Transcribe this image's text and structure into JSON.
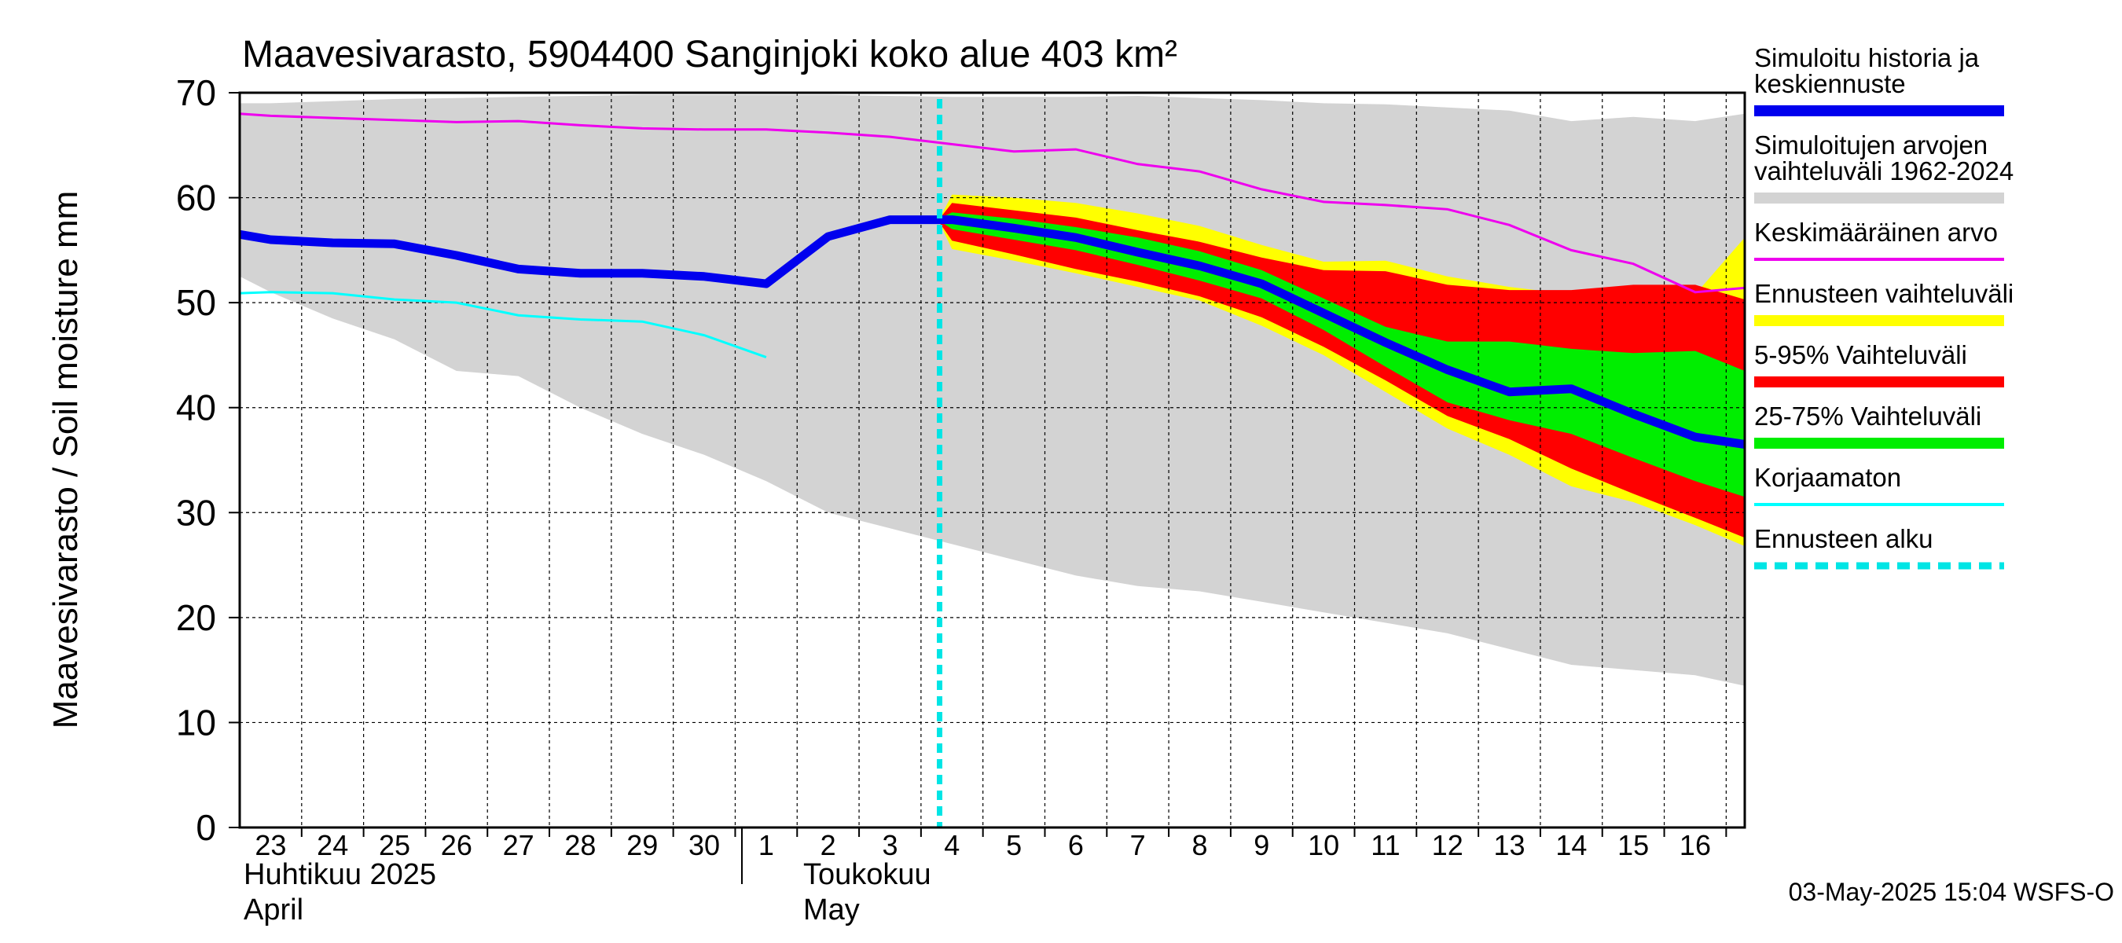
{
  "chart_data": {
    "type": "area",
    "title": "Maavesivarasto, 5904400 Sanginjoki koko alue 403 km²",
    "ylabel": "Maavesivarasto / Soil moisture   mm",
    "ylim": [
      0,
      70
    ],
    "yticks": [
      "0",
      "10",
      "20",
      "30",
      "40",
      "50",
      "60",
      "70"
    ],
    "x_day_range": [
      22.5,
      46.8
    ],
    "x_tick_labels": [
      "23",
      "24",
      "25",
      "26",
      "27",
      "28",
      "29",
      "30",
      "1",
      "2",
      "3",
      "4",
      "5",
      "6",
      "7",
      "8",
      "9",
      "10",
      "11",
      "12",
      "13",
      "14",
      "15",
      "16"
    ],
    "month_labels": {
      "april_fi": "Huhtikuu  2025",
      "april_en": "April",
      "may_fi": "Toukokuu",
      "may_en": "May"
    },
    "grid": true,
    "forecast_start_day": 33.8,
    "legend": [
      {
        "key": "history",
        "label_line1": "Simuloitu historia ja",
        "label_line2": "keskiennuste",
        "color": "#0000ee"
      },
      {
        "key": "range_hist",
        "label_line1": "Simuloitujen arvojen",
        "label_line2": "vaihteluväli 1962-2024",
        "color": "#d3d3d3"
      },
      {
        "key": "mean",
        "label_line1": "Keskimääräinen arvo",
        "color": "#ee00ee"
      },
      {
        "key": "ens_range",
        "label_line1": "Ennusteen vaihteluväli",
        "color": "#ffff00"
      },
      {
        "key": "p5_95",
        "label_line1": "5-95% Vaihteluväli",
        "color": "#ff0000"
      },
      {
        "key": "p25_75",
        "label_line1": "25-75% Vaihteluväli",
        "color": "#00ee00"
      },
      {
        "key": "uncorrected",
        "label_line1": "Korjaamaton",
        "color": "#00ffff"
      },
      {
        "key": "forecast_start",
        "label_line1": "Ennusteen alku",
        "color": "#00e5e5"
      }
    ],
    "series": {
      "range_hist": {
        "x": [
          22.5,
          23,
          24,
          25,
          26,
          27,
          28,
          29,
          30,
          31,
          32,
          33,
          34,
          35,
          36,
          37,
          38,
          39,
          40,
          41,
          42,
          43,
          44,
          45,
          46,
          46.8
        ],
        "upper": [
          69,
          69,
          69.2,
          69.4,
          69.5,
          69.6,
          69.7,
          69.8,
          69.8,
          69.8,
          69.8,
          69.7,
          69.6,
          69.6,
          69.6,
          69.7,
          69.5,
          69.3,
          69,
          68.9,
          68.6,
          68.3,
          67.3,
          67.7,
          67.3,
          68
        ],
        "lower": [
          52.5,
          51,
          48.5,
          46.5,
          43.5,
          43,
          40,
          37.5,
          35.5,
          33,
          30,
          28.5,
          27,
          25.5,
          24,
          23,
          22.5,
          21.5,
          20.5,
          19.5,
          18.5,
          17,
          15.5,
          15,
          14.5,
          13.5
        ]
      },
      "mean": {
        "x": [
          22.5,
          23,
          24,
          25,
          26,
          27,
          28,
          29,
          30,
          31,
          32,
          33,
          34,
          35,
          36,
          37,
          38,
          39,
          40,
          41,
          42,
          43,
          44,
          45,
          46,
          46.8
        ],
        "y": [
          68,
          67.8,
          67.6,
          67.4,
          67.2,
          67.3,
          66.9,
          66.6,
          66.5,
          66.5,
          66.2,
          65.8,
          65.1,
          64.4,
          64.6,
          63.2,
          62.5,
          60.8,
          59.6,
          59.3,
          58.9,
          57.4,
          55,
          53.7,
          51,
          51.4
        ]
      },
      "history": {
        "x": [
          22.5,
          23,
          24,
          25,
          26,
          27,
          28,
          29,
          30,
          31,
          32,
          33,
          34,
          35,
          36,
          37,
          38,
          39,
          40,
          41,
          42,
          43,
          44,
          45,
          46,
          46.8
        ],
        "y": [
          56.5,
          56,
          55.7,
          55.6,
          54.5,
          53.2,
          52.8,
          52.8,
          52.5,
          51.8,
          56.3,
          57.9,
          57.9,
          57.1,
          56.2,
          54.8,
          53.5,
          51.8,
          49,
          46.2,
          43.6,
          41.5,
          41.8,
          39.4,
          37.2,
          36.5
        ]
      },
      "uncorrected": {
        "x": [
          22.5,
          23,
          24,
          25,
          26,
          27,
          28,
          29,
          30,
          31
        ],
        "y": [
          50.9,
          51,
          50.9,
          50.3,
          50,
          48.8,
          48.4,
          48.2,
          46.9,
          44.8
        ]
      },
      "ens_range": {
        "x": [
          33.8,
          34,
          35,
          36,
          37,
          38,
          39,
          40,
          41,
          42,
          43,
          44,
          45,
          46,
          46.8
        ],
        "upper": [
          58,
          60.3,
          60,
          59.5,
          58.5,
          57.3,
          55.5,
          53.9,
          54,
          52.5,
          51.5,
          50.8,
          51.5,
          50.8,
          56.2
        ],
        "lower": [
          57.6,
          55.1,
          54,
          52.8,
          51.5,
          50.2,
          47.8,
          45,
          41.5,
          38,
          35.5,
          32.5,
          31,
          28.8,
          26.8
        ]
      },
      "p5_95": {
        "x": [
          33.8,
          34,
          35,
          36,
          37,
          38,
          39,
          40,
          41,
          42,
          43,
          44,
          45,
          46,
          46.8
        ],
        "upper": [
          58,
          59.5,
          58.8,
          58.1,
          56.9,
          55.8,
          54.3,
          53.1,
          53,
          51.7,
          51.2,
          51.2,
          51.7,
          51.7,
          50.3
        ],
        "lower": [
          57.6,
          55.9,
          54.6,
          53.2,
          52,
          50.6,
          48.6,
          45.8,
          42.6,
          39.2,
          37,
          34.2,
          31.8,
          29.5,
          27.6
        ]
      },
      "p25_75": {
        "x": [
          33.8,
          34,
          35,
          36,
          37,
          38,
          39,
          40,
          41,
          42,
          43,
          44,
          45,
          46,
          46.8
        ],
        "upper": [
          58,
          58.6,
          58,
          57.2,
          56.2,
          54.9,
          53.1,
          50.4,
          47.7,
          46.3,
          46.3,
          45.6,
          45.2,
          45.4,
          43.5
        ],
        "lower": [
          57.8,
          57,
          56,
          55,
          53.6,
          52.1,
          50.4,
          47.4,
          43.9,
          40.5,
          38.8,
          37.5,
          35.2,
          33,
          31.5
        ]
      }
    }
  },
  "timestamp": "03-May-2025 15:04 WSFS-O"
}
